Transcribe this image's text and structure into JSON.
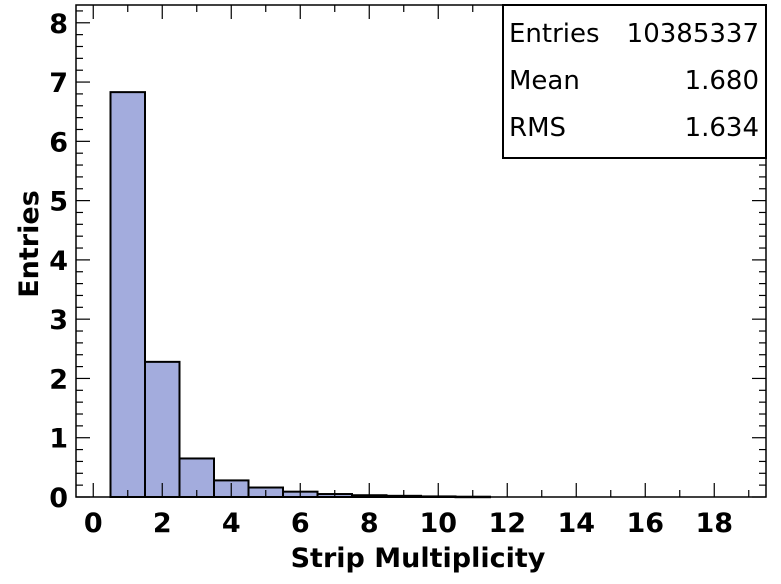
{
  "chart_data": {
    "type": "bar",
    "title": "",
    "xlabel": "Strip Multiplicity",
    "ylabel": "Entries",
    "xlim": [
      -0.5,
      19.5
    ],
    "ylim": [
      0,
      8.3
    ],
    "x_ticks": [
      "0",
      "2",
      "4",
      "6",
      "8",
      "10",
      "12",
      "14",
      "16",
      "18"
    ],
    "y_ticks": [
      "0",
      "1",
      "2",
      "3",
      "4",
      "5",
      "6",
      "7",
      "8"
    ],
    "bins": [
      {
        "low": 0.5,
        "high": 1.5,
        "value": 6.83
      },
      {
        "low": 1.5,
        "high": 2.5,
        "value": 2.28
      },
      {
        "low": 2.5,
        "high": 3.5,
        "value": 0.65
      },
      {
        "low": 3.5,
        "high": 4.5,
        "value": 0.28
      },
      {
        "low": 4.5,
        "high": 5.5,
        "value": 0.16
      },
      {
        "low": 5.5,
        "high": 6.5,
        "value": 0.09
      },
      {
        "low": 6.5,
        "high": 7.5,
        "value": 0.05
      },
      {
        "low": 7.5,
        "high": 8.5,
        "value": 0.03
      },
      {
        "low": 8.5,
        "high": 9.5,
        "value": 0.02
      },
      {
        "low": 9.5,
        "high": 10.5,
        "value": 0.01
      },
      {
        "low": 10.5,
        "high": 11.5,
        "value": 0.005
      }
    ],
    "fill_color": "#a3acdd",
    "line_color": "#000000",
    "grid": false,
    "legend_placement": "top-right",
    "stats_box": {
      "entries_label": "Entries",
      "entries_value": "10385337",
      "mean_label": "Mean",
      "mean_value": "1.680",
      "rms_label": "RMS",
      "rms_value": "1.634"
    }
  }
}
